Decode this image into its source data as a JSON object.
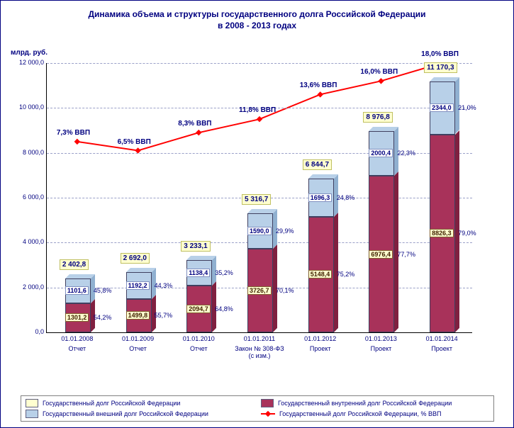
{
  "title_line1": "Динамика объема и структуры государственного долга Российской Федерации",
  "title_line2": "в 2008 - 2013 годах",
  "yaxis_label": "млрд. руб.",
  "chart": {
    "type": "stacked-bar-3d + line",
    "ylim": [
      0,
      12000
    ],
    "ytick_step": 2000,
    "yticks": [
      "0,0",
      "2 000,0",
      "4 000,0",
      "6 000,0",
      "8 000,0",
      "10 000,0",
      "12 000,0"
    ],
    "background_color": "#ffffff",
    "grid_color": "#9aa0c8",
    "colors": {
      "total": "#ffffd0",
      "internal": "#a8325a",
      "internal_side": "#802040",
      "external": "#b8d0e8",
      "external_side": "#90b0d0",
      "line": "#ff0000",
      "seg_label_internal": "#ffffd0",
      "seg_label_external": "#000080"
    },
    "categories": [
      {
        "date": "01.01.2008",
        "sub": "Отчет",
        "internal": 1301.2,
        "external": 1101.6,
        "total": 2402.8,
        "total_label": "2 402,8",
        "int_label": "1301,2",
        "ext_label": "1101,6",
        "int_pct": "54,2%",
        "ext_pct": "45,8%",
        "gdp": "7,3% ВВП",
        "gdp_y": 8500
      },
      {
        "date": "01.01.2009",
        "sub": "Отчет",
        "internal": 1499.8,
        "external": 1192.2,
        "total": 2692.0,
        "total_label": "2 692,0",
        "int_label": "1499,8",
        "ext_label": "1192,2",
        "int_pct": "55,7%",
        "ext_pct": "44,3%",
        "gdp": "6,5% ВВП",
        "gdp_y": 8100
      },
      {
        "date": "01.01.2010",
        "sub": "Отчет",
        "internal": 2094.7,
        "external": 1138.4,
        "total": 3233.1,
        "total_label": "3 233,1",
        "int_label": "2094,7",
        "ext_label": "1138,4",
        "int_pct": "64,8%",
        "ext_pct": "35,2%",
        "gdp": "8,3% ВВП",
        "gdp_y": 8900
      },
      {
        "date": "01.01.2011",
        "sub": "Закон № 308-ФЗ (с изм.)",
        "internal": 3726.7,
        "external": 1590.0,
        "total": 5316.7,
        "total_label": "5 316,7",
        "int_label": "3726,7",
        "ext_label": "1590,0",
        "int_pct": "70,1%",
        "ext_pct": "29,9%",
        "gdp": "11,8% ВВП",
        "gdp_y": 9500
      },
      {
        "date": "01.01.2012",
        "sub": "Проект",
        "internal": 5148.4,
        "external": 1696.3,
        "total": 6844.7,
        "total_label": "6 844,7",
        "int_label": "5148,4",
        "ext_label": "1696,3",
        "int_pct": "75,2%",
        "ext_pct": "24,8%",
        "gdp": "13,6% ВВП",
        "gdp_y": 10600
      },
      {
        "date": "01.01.2013",
        "sub": "Проект",
        "internal": 6976.4,
        "external": 2000.4,
        "total": 8976.8,
        "total_label": "8 976,8",
        "int_label": "6976,4",
        "ext_label": "2000,4",
        "int_pct": "77,7%",
        "ext_pct": "22,3%",
        "gdp": "16,0% ВВП",
        "gdp_y": 11200
      },
      {
        "date": "01.01.2014",
        "sub": "Проект",
        "internal": 8826.3,
        "external": 2344.0,
        "total": 11170.3,
        "total_label": "11 170,3",
        "int_label": "8826,3",
        "ext_label": "2344,0",
        "int_pct": "79,0%",
        "ext_pct": "21,0%",
        "gdp": "18,0% ВВП",
        "gdp_y": 12000
      }
    ]
  },
  "legend": {
    "total": "Государственный долг Российской Федерации",
    "internal": "Государственный внутренний долг Российской Федерации",
    "external": "Государственный внешний долг Российской Федерации",
    "gdp_line": "Государственный долг Российской Федерации, % ВВП"
  }
}
